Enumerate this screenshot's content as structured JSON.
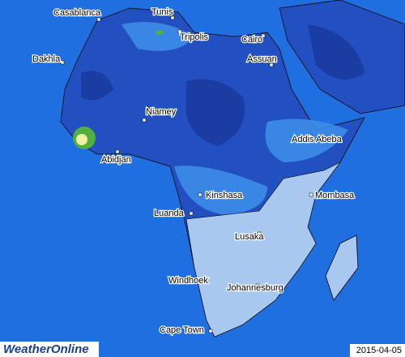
{
  "cities": [
    {
      "label": "Casablanca"
    },
    {
      "label": "Tunis"
    },
    {
      "label": "Tripolis"
    },
    {
      "label": "Cairo"
    },
    {
      "label": "Dakhla"
    },
    {
      "label": "Assuan"
    },
    {
      "label": "Niamey"
    },
    {
      "label": "Addis Abeba"
    },
    {
      "label": "Abidjan"
    },
    {
      "label": "Kinshasa"
    },
    {
      "label": "Mombasa"
    },
    {
      "label": "Luanda"
    },
    {
      "label": "Lusaka"
    },
    {
      "label": "Windhoek"
    },
    {
      "label": "Johannesburg"
    },
    {
      "label": "Cape Town"
    }
  ],
  "logo": "WeatherOnline",
  "date": "2015-04-05"
}
